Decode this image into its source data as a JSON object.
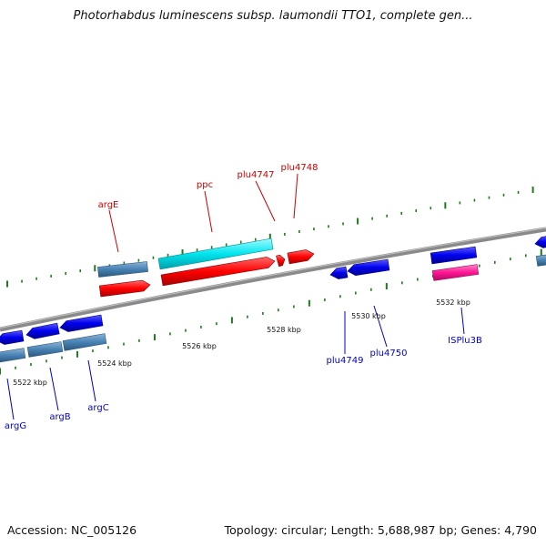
{
  "title": "Photorhabdus luminescens subsp. laumondii TTO1, complete gen...",
  "footer": {
    "accession": "Accession: NC_005126",
    "summary": "Topology: circular; Length: 5,688,987 bp; Genes: 4,790"
  },
  "colors": {
    "backbone": "#8a8a8a",
    "tick": "#1e7a1e",
    "cds_forward": "#ff0000",
    "cds_reverse": "#0000ee",
    "gene_bar": "#4682b4",
    "rna": "#00e5ee",
    "misc": "#ff1493",
    "label_forward": "#cc0000",
    "label_reverse": "#0000cc"
  },
  "scale_labels": [
    "5522 kbp",
    "5524 kbp",
    "5526 kbp",
    "5528 kbp",
    "5530 kbp",
    "5532 kbp"
  ],
  "genes_forward": [
    "argE",
    "ppc",
    "plu4747",
    "plu4748"
  ],
  "genes_reverse": [
    "argG",
    "argB",
    "argC",
    "plu4749",
    "plu4750",
    "ISPlu3B"
  ]
}
